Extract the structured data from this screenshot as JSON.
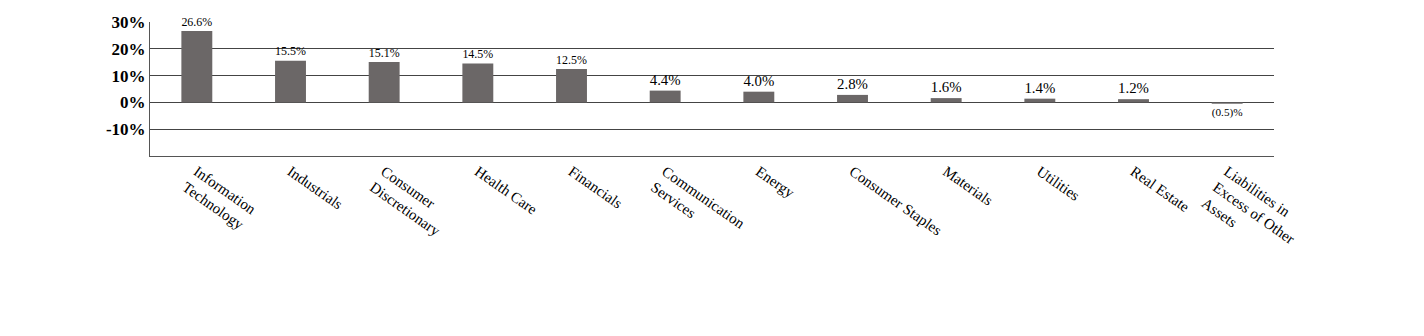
{
  "chart_data": {
    "type": "bar",
    "categories": [
      "Information Technology",
      "Industrials",
      "Consumer Discretionary",
      "Health Care",
      "Financials",
      "Communication Services",
      "Energy",
      "Consumer Staples",
      "Materials",
      "Utilities",
      "Real Estate",
      "Liabilities in Excess of Other Assets"
    ],
    "values": [
      26.6,
      15.5,
      15.1,
      14.5,
      12.5,
      4.4,
      4.0,
      2.8,
      1.6,
      1.4,
      1.2,
      -0.5
    ],
    "value_labels": [
      "26.6%",
      "15.5%",
      "15.1%",
      "14.5%",
      "12.5%",
      "4.4%",
      "4.0%",
      "2.8%",
      "1.6%",
      "1.4%",
      "1.2%",
      "(0.5)%"
    ],
    "color": "#6b6767",
    "ylim": [
      -20,
      30
    ],
    "yticks": [
      {
        "value": -10,
        "label": "-10%"
      },
      {
        "value": 0,
        "label": "0%"
      },
      {
        "value": 10,
        "label": "10%"
      },
      {
        "value": 20,
        "label": "20%"
      },
      {
        "value": 30,
        "label": "30%"
      }
    ],
    "grid": true,
    "data_labels": true
  }
}
